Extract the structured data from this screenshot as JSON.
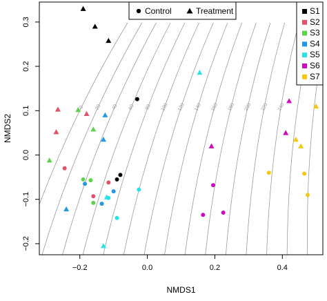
{
  "chart_data": {
    "type": "scatter",
    "xlabel": "NMDS1",
    "ylabel": "NMDS2",
    "xlim": [
      -0.32,
      0.52
    ],
    "ylim": [
      -0.225,
      0.345
    ],
    "x_ticks": [
      -0.2,
      0.0,
      0.2,
      0.4
    ],
    "x_tick_labels": [
      "−0.2",
      "0.0",
      "0.2",
      "0.4"
    ],
    "y_ticks": [
      -0.2,
      -0.1,
      0.0,
      0.1,
      0.2,
      0.3
    ],
    "y_tick_labels": [
      "−0.2",
      "−0.1",
      "0.0",
      "0.1",
      "0.2",
      "0.3"
    ],
    "grid": false,
    "legends": {
      "treatment": {
        "placement": "top-center",
        "entries": [
          {
            "label": "Control",
            "shape": "circle"
          },
          {
            "label": "Treatment",
            "shape": "triangle"
          }
        ]
      },
      "site": {
        "placement": "top-right",
        "entries": [
          {
            "label": "S1",
            "color": "#000000"
          },
          {
            "label": "S2",
            "color": "#df536b"
          },
          {
            "label": "S3",
            "color": "#61d04f"
          },
          {
            "label": "S4",
            "color": "#2297e6"
          },
          {
            "label": "S5",
            "color": "#28e2e5"
          },
          {
            "label": "S6",
            "color": "#cd0bbc"
          },
          {
            "label": "S7",
            "color": "#f5c710"
          }
        ]
      }
    },
    "contours": {
      "color": "#9a9a9a",
      "labels": [
        "0",
        "20",
        "40",
        "60",
        "80",
        "100",
        "120",
        "140",
        "160",
        "180",
        "200",
        "220",
        "240"
      ]
    },
    "series": [
      {
        "site": "S1",
        "treatment": "Treatment",
        "x": -0.19,
        "y": 0.33
      },
      {
        "site": "S1",
        "treatment": "Treatment",
        "x": -0.155,
        "y": 0.29
      },
      {
        "site": "S1",
        "treatment": "Treatment",
        "x": -0.115,
        "y": 0.258
      },
      {
        "site": "S1",
        "treatment": "Control",
        "x": -0.03,
        "y": 0.126
      },
      {
        "site": "S1",
        "treatment": "Control",
        "x": -0.08,
        "y": -0.045
      },
      {
        "site": "S1",
        "treatment": "Control",
        "x": -0.09,
        "y": -0.055
      },
      {
        "site": "S2",
        "treatment": "Treatment",
        "x": -0.265,
        "y": 0.103
      },
      {
        "site": "S2",
        "treatment": "Treatment",
        "x": -0.18,
        "y": 0.093
      },
      {
        "site": "S2",
        "treatment": "Treatment",
        "x": -0.27,
        "y": 0.052
      },
      {
        "site": "S2",
        "treatment": "Control",
        "x": -0.245,
        "y": -0.03
      },
      {
        "site": "S2",
        "treatment": "Control",
        "x": -0.115,
        "y": -0.062
      },
      {
        "site": "S2",
        "treatment": "Control",
        "x": -0.16,
        "y": -0.093
      },
      {
        "site": "S3",
        "treatment": "Treatment",
        "x": -0.205,
        "y": 0.102
      },
      {
        "site": "S3",
        "treatment": "Treatment",
        "x": -0.16,
        "y": 0.058
      },
      {
        "site": "S3",
        "treatment": "Treatment",
        "x": -0.29,
        "y": -0.012
      },
      {
        "site": "S3",
        "treatment": "Control",
        "x": -0.19,
        "y": -0.055
      },
      {
        "site": "S3",
        "treatment": "Control",
        "x": -0.168,
        "y": -0.057
      },
      {
        "site": "S3",
        "treatment": "Control",
        "x": -0.16,
        "y": -0.108
      },
      {
        "site": "S4",
        "treatment": "Treatment",
        "x": -0.125,
        "y": 0.09
      },
      {
        "site": "S4",
        "treatment": "Treatment",
        "x": -0.13,
        "y": 0.035
      },
      {
        "site": "S4",
        "treatment": "Treatment",
        "x": -0.24,
        "y": -0.122
      },
      {
        "site": "S4",
        "treatment": "Control",
        "x": -0.185,
        "y": -0.065
      },
      {
        "site": "S4",
        "treatment": "Control",
        "x": -0.1,
        "y": -0.082
      },
      {
        "site": "S4",
        "treatment": "Control",
        "x": -0.135,
        "y": -0.11
      },
      {
        "site": "S5",
        "treatment": "Treatment",
        "x": 0.155,
        "y": 0.186
      },
      {
        "site": "S5",
        "treatment": "Treatment",
        "x": -0.12,
        "y": -0.095
      },
      {
        "site": "S5",
        "treatment": "Treatment",
        "x": -0.13,
        "y": -0.205
      },
      {
        "site": "S5",
        "treatment": "Control",
        "x": -0.025,
        "y": -0.078
      },
      {
        "site": "S5",
        "treatment": "Control",
        "x": -0.115,
        "y": -0.097
      },
      {
        "site": "S5",
        "treatment": "Control",
        "x": -0.09,
        "y": -0.142
      },
      {
        "site": "S6",
        "treatment": "Treatment",
        "x": 0.42,
        "y": 0.122
      },
      {
        "site": "S6",
        "treatment": "Treatment",
        "x": 0.19,
        "y": 0.02
      },
      {
        "site": "S6",
        "treatment": "Treatment",
        "x": 0.41,
        "y": 0.05
      },
      {
        "site": "S6",
        "treatment": "Control",
        "x": 0.195,
        "y": -0.068
      },
      {
        "site": "S6",
        "treatment": "Control",
        "x": 0.165,
        "y": -0.135
      },
      {
        "site": "S6",
        "treatment": "Control",
        "x": 0.225,
        "y": -0.13
      },
      {
        "site": "S7",
        "treatment": "Treatment",
        "x": 0.5,
        "y": 0.11
      },
      {
        "site": "S7",
        "treatment": "Treatment",
        "x": 0.44,
        "y": 0.035
      },
      {
        "site": "S7",
        "treatment": "Treatment",
        "x": 0.455,
        "y": 0.02
      },
      {
        "site": "S7",
        "treatment": "Control",
        "x": 0.36,
        "y": -0.04
      },
      {
        "site": "S7",
        "treatment": "Control",
        "x": 0.465,
        "y": -0.042
      },
      {
        "site": "S7",
        "treatment": "Control",
        "x": 0.475,
        "y": -0.09
      }
    ]
  }
}
